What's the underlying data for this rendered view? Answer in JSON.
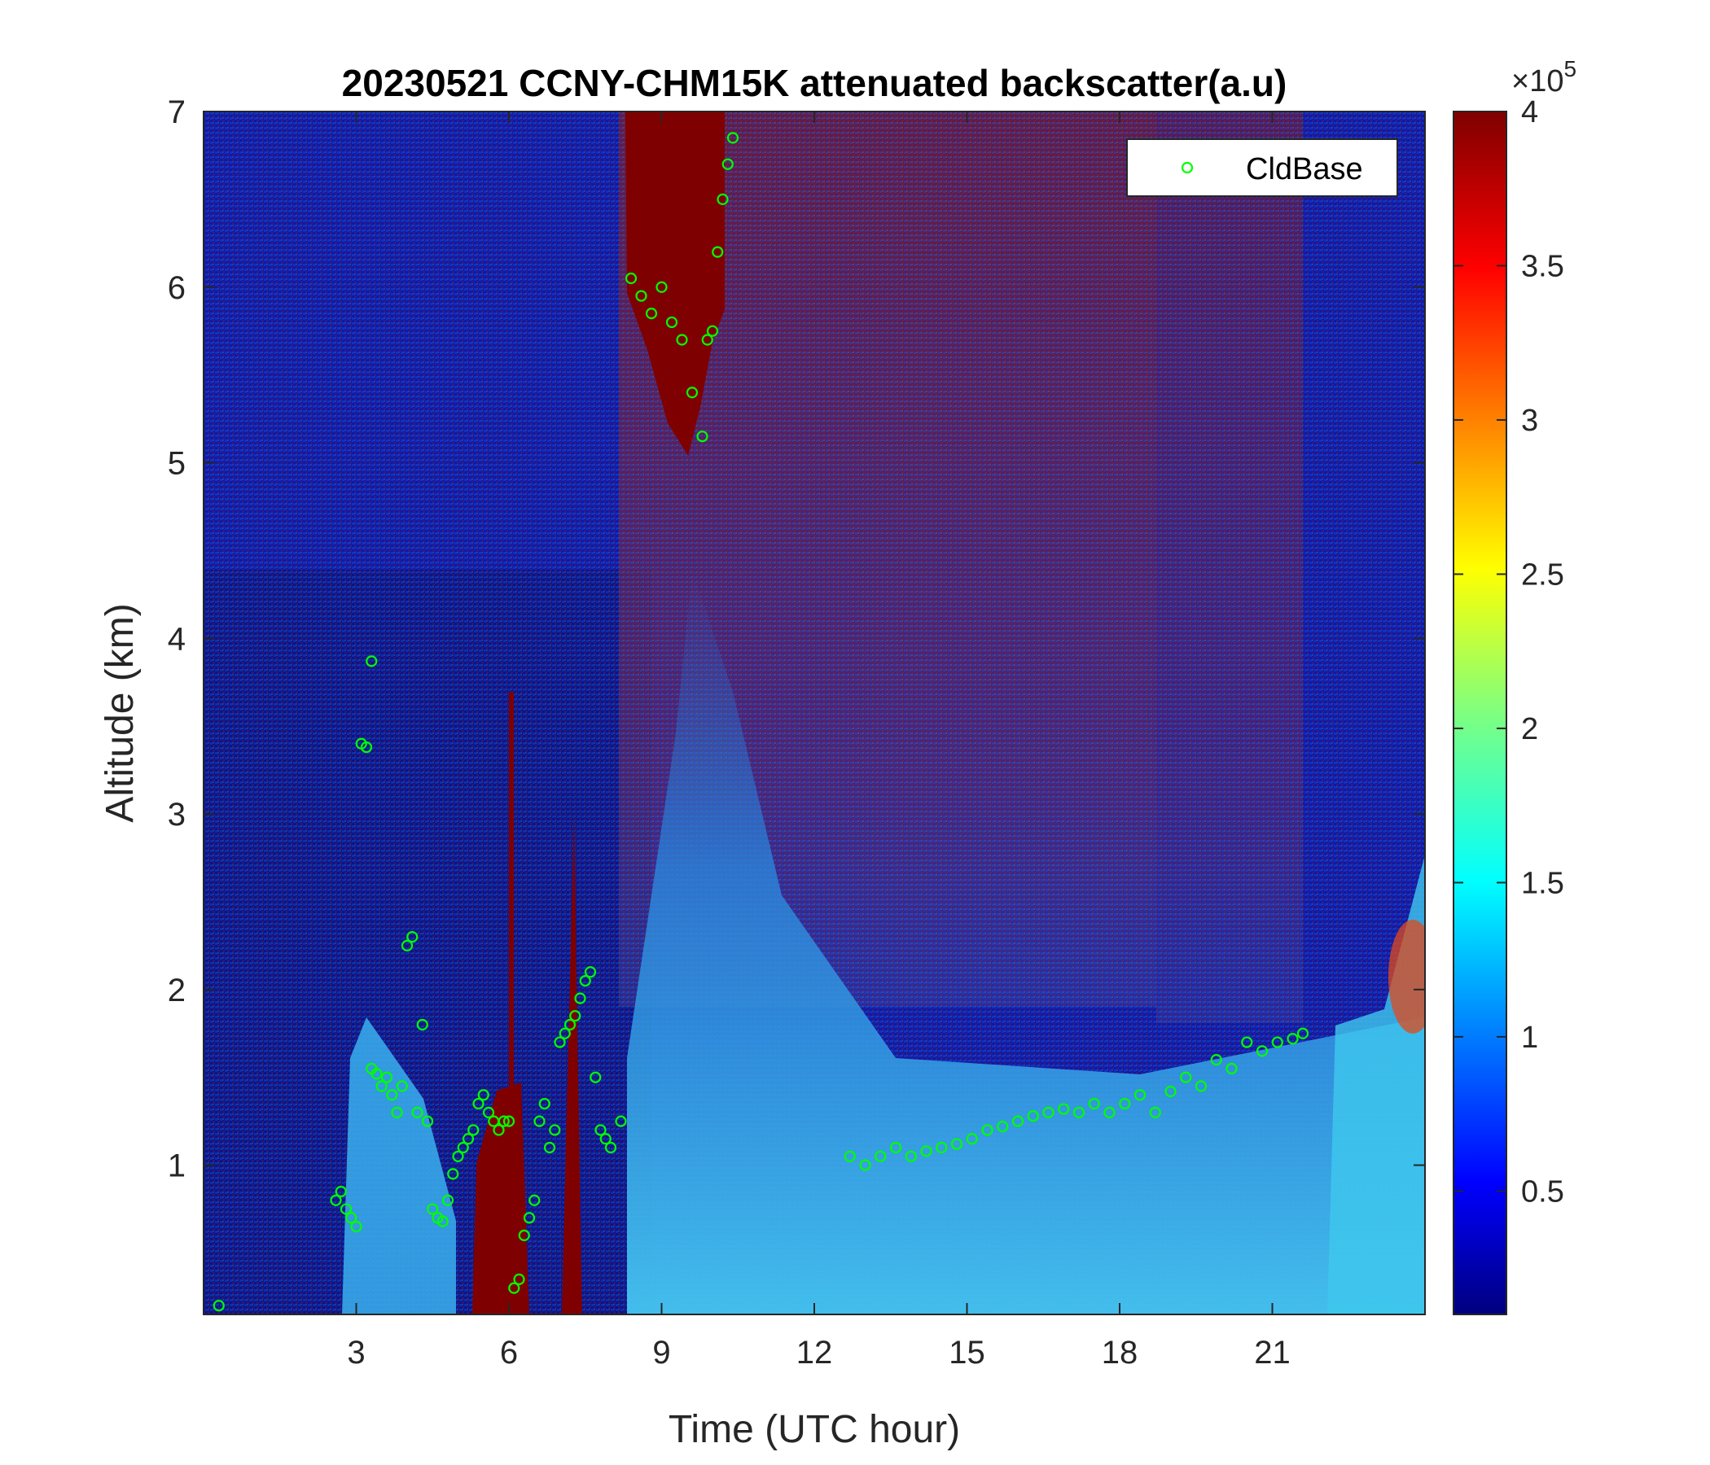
{
  "chart_data": {
    "type": "heatmap",
    "title": "20230521 CCNY-CHM15K attenuated backscatter(a.u)",
    "xlabel": "Time (UTC hour)",
    "ylabel": "Altitude (km)",
    "xlim": [
      0,
      24
    ],
    "ylim": [
      0.15,
      7
    ],
    "x_ticks": [
      3,
      6,
      9,
      12,
      15,
      18,
      21
    ],
    "y_ticks": [
      1,
      2,
      3,
      4,
      5,
      6,
      7
    ],
    "colorbar": {
      "colormap": "jet",
      "range": [
        10000,
        400000
      ],
      "ticks": [
        0.5,
        1,
        1.5,
        2,
        2.5,
        3,
        3.5,
        4
      ],
      "multiplier_base": "×10",
      "multiplier_exponent": "5"
    },
    "legend": {
      "position": "top-right",
      "entries": [
        {
          "label": "CldBase",
          "marker": "circle",
          "color": "#00ff00"
        }
      ]
    },
    "series": [
      {
        "name": "CldBase",
        "type": "scatter",
        "color": "#00ff00",
        "x": [
          0.3,
          2.6,
          2.7,
          2.8,
          2.9,
          3.0,
          3.1,
          3.2,
          3.3,
          3.3,
          3.4,
          3.5,
          3.6,
          3.7,
          3.8,
          3.9,
          4.0,
          4.1,
          4.2,
          4.3,
          4.4,
          4.5,
          4.6,
          4.7,
          4.8,
          4.9,
          5.0,
          5.1,
          5.2,
          5.3,
          5.4,
          5.5,
          5.6,
          5.7,
          5.8,
          5.9,
          6.0,
          6.1,
          6.2,
          6.3,
          6.4,
          6.5,
          6.6,
          6.7,
          6.8,
          6.9,
          7.0,
          7.1,
          7.2,
          7.3,
          7.4,
          7.5,
          7.6,
          7.7,
          7.8,
          7.9,
          8.0,
          8.2,
          8.4,
          8.6,
          8.8,
          9.0,
          9.2,
          9.4,
          9.6,
          9.8,
          9.9,
          10.0,
          10.1,
          10.2,
          10.3,
          10.4,
          12.7,
          13.0,
          13.3,
          13.6,
          13.9,
          14.2,
          14.5,
          14.8,
          15.1,
          15.4,
          15.7,
          16.0,
          16.3,
          16.6,
          16.9,
          17.2,
          17.5,
          17.8,
          18.1,
          18.4,
          18.7,
          19.0,
          19.3,
          19.6,
          19.9,
          20.2,
          20.5,
          20.8,
          21.1,
          21.4,
          21.6
        ],
        "y": [
          0.2,
          0.8,
          0.85,
          0.75,
          0.7,
          0.65,
          3.4,
          3.38,
          3.87,
          1.55,
          1.52,
          1.45,
          1.5,
          1.4,
          1.3,
          1.45,
          2.25,
          2.3,
          1.3,
          1.8,
          1.25,
          0.75,
          0.7,
          0.68,
          0.8,
          0.95,
          1.05,
          1.1,
          1.15,
          1.2,
          1.35,
          1.4,
          1.3,
          1.25,
          1.2,
          1.25,
          1.25,
          0.3,
          0.35,
          0.6,
          0.7,
          0.8,
          1.25,
          1.35,
          1.1,
          1.2,
          1.7,
          1.75,
          1.8,
          1.85,
          1.95,
          2.05,
          2.1,
          1.5,
          1.2,
          1.15,
          1.1,
          1.25,
          6.05,
          5.95,
          5.85,
          6.0,
          5.8,
          5.7,
          5.4,
          5.15,
          5.7,
          5.75,
          6.2,
          6.5,
          6.7,
          6.85,
          1.05,
          1.0,
          1.05,
          1.1,
          1.05,
          1.08,
          1.1,
          1.12,
          1.15,
          1.2,
          1.22,
          1.25,
          1.28,
          1.3,
          1.32,
          1.3,
          1.35,
          1.3,
          1.35,
          1.4,
          1.3,
          1.42,
          1.5,
          1.45,
          1.6,
          1.55,
          1.7,
          1.65,
          1.7,
          1.72,
          1.75
        ]
      }
    ]
  }
}
